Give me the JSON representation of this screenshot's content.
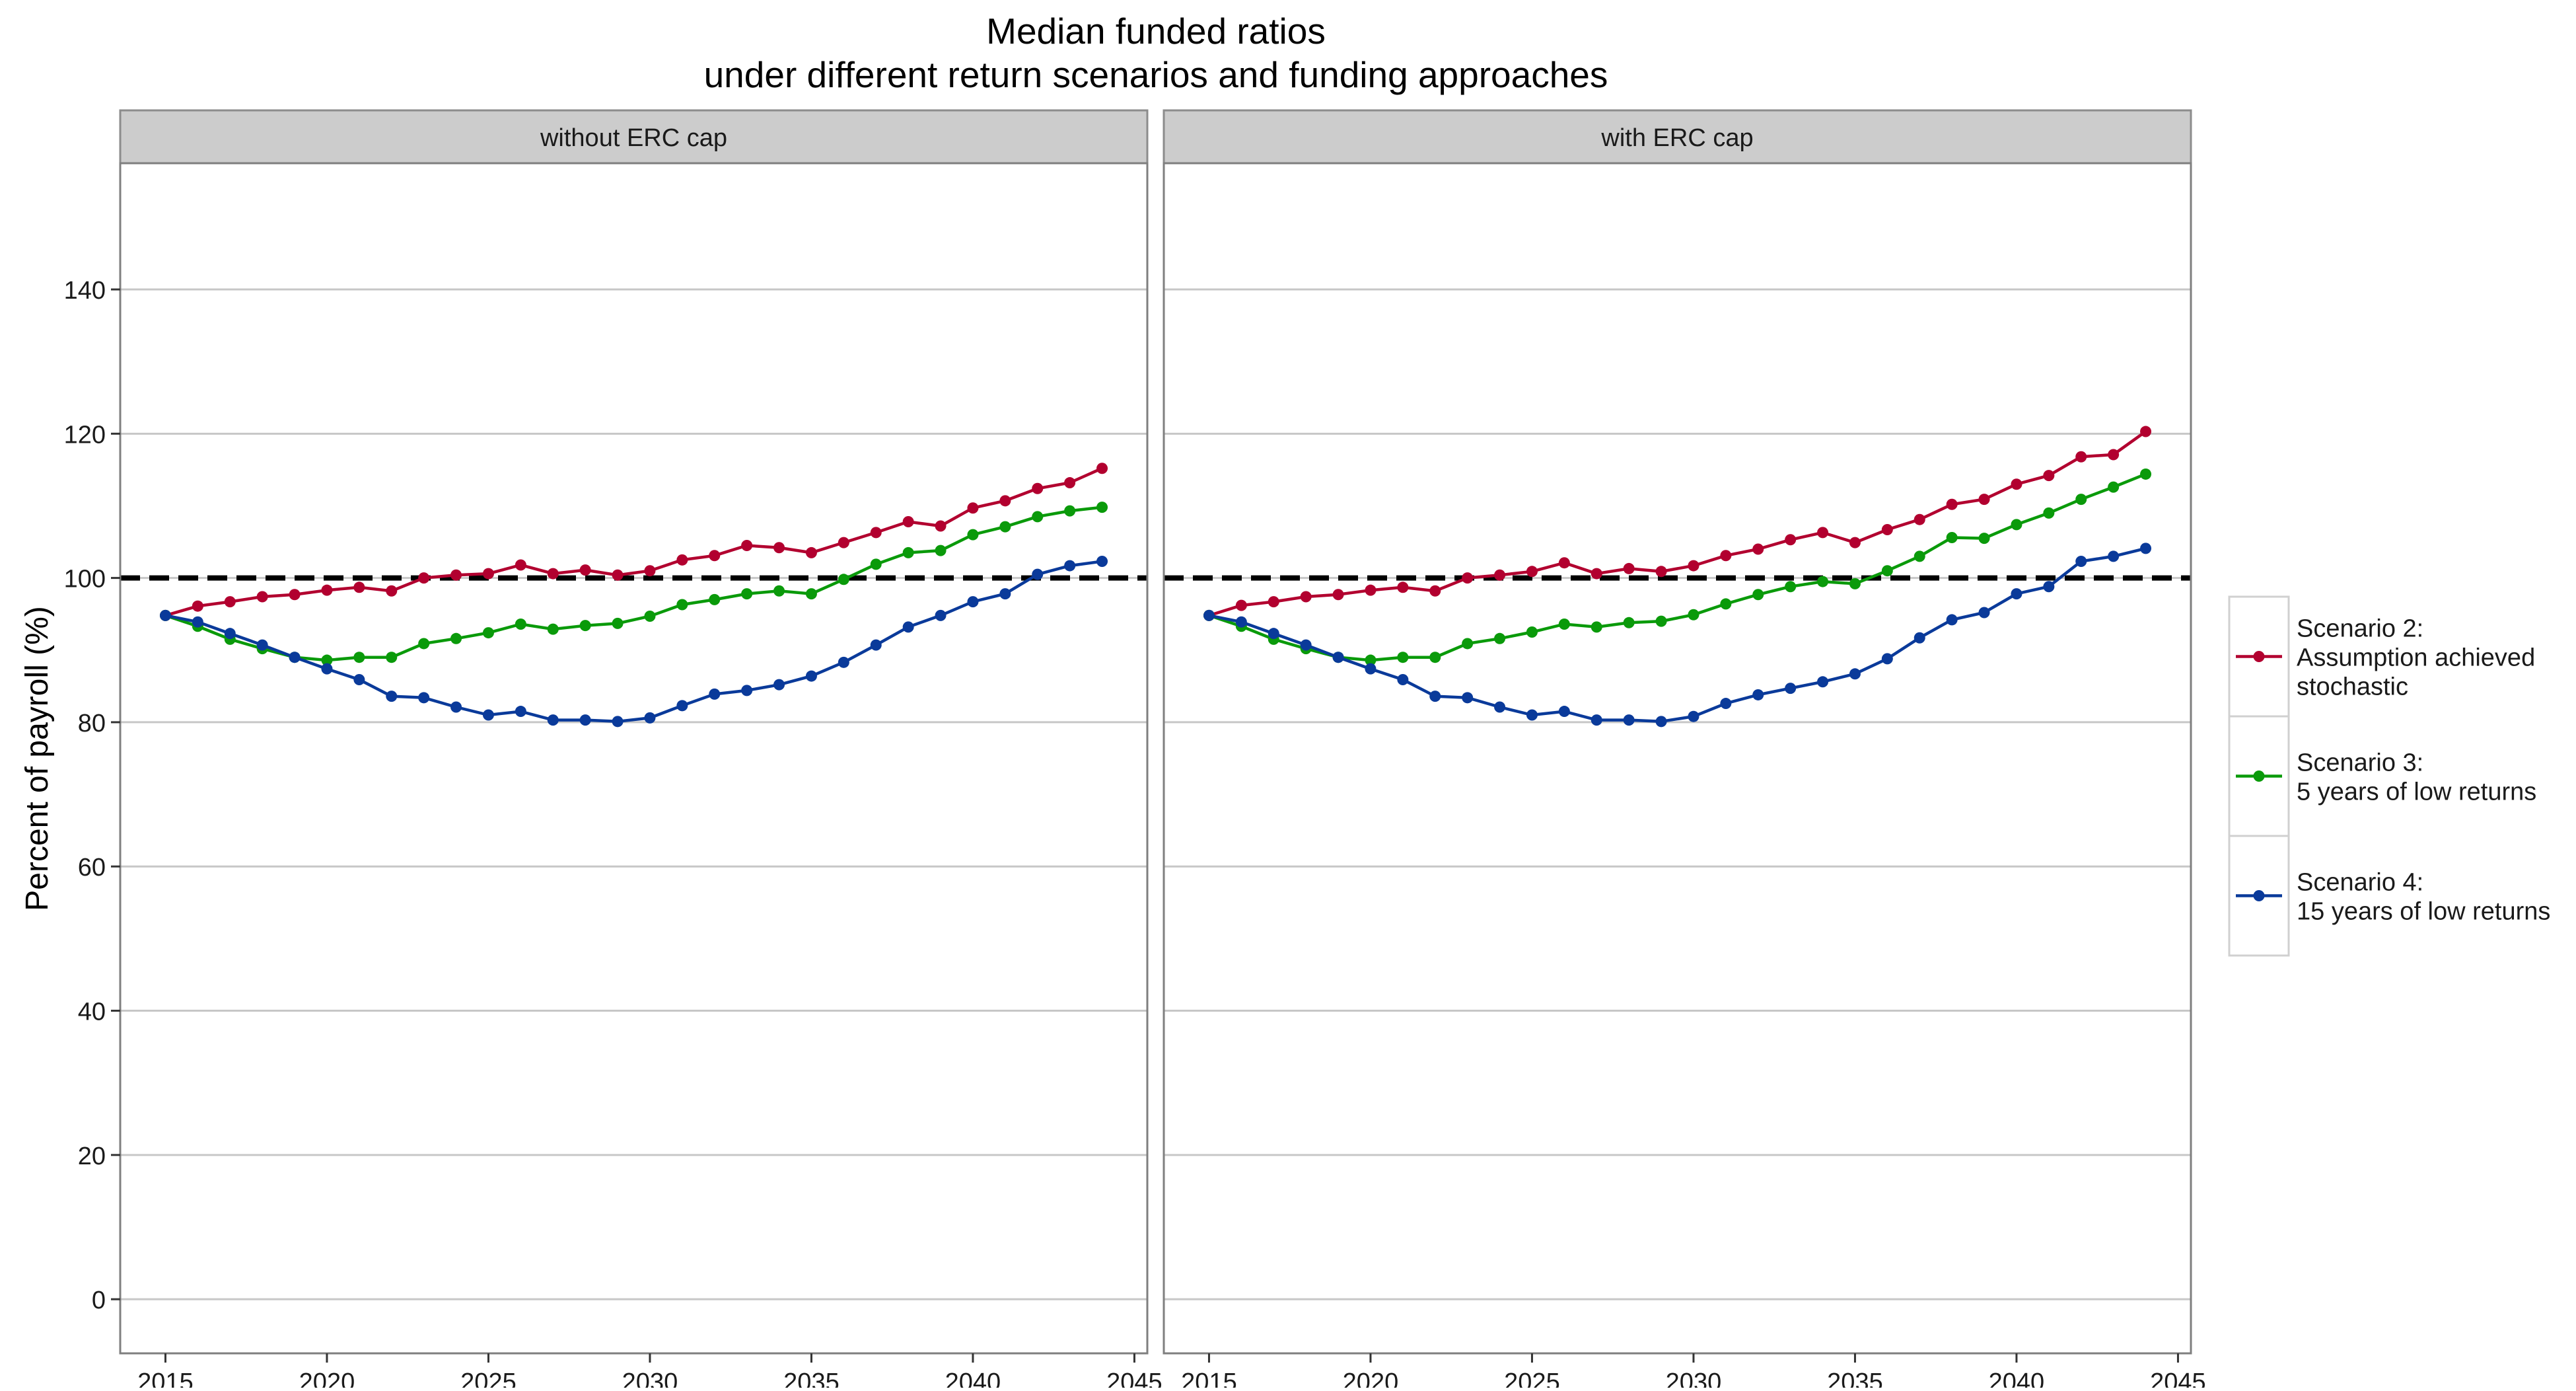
{
  "chart_data": {
    "type": "line",
    "title": [
      "Median funded ratios",
      "under different return scenarios and funding approaches"
    ],
    "ylabel": "Percent of payroll (%)",
    "xlabel": "",
    "xlim": [
      2013.6,
      2045.4
    ],
    "ylim": [
      -7.5,
      157.5
    ],
    "x_ticks": [
      2015,
      2020,
      2025,
      2030,
      2035,
      2040,
      2045
    ],
    "y_ticks": [
      0,
      20,
      40,
      60,
      80,
      100,
      120,
      140
    ],
    "grid": true,
    "reference_line": {
      "y": 100,
      "style": "dashed",
      "color": "#000000"
    },
    "legend": {
      "position": "right"
    },
    "x": [
      2015,
      2016,
      2017,
      2018,
      2019,
      2020,
      2021,
      2022,
      2023,
      2024,
      2025,
      2026,
      2027,
      2028,
      2029,
      2030,
      2031,
      2032,
      2033,
      2034,
      2035,
      2036,
      2037,
      2038,
      2039,
      2040,
      2041,
      2042,
      2043,
      2044
    ],
    "panels": [
      {
        "label": "without ERC cap",
        "series": [
          {
            "name": "Scenario 2:\nAssumption achieved\nstochastic",
            "color": "#b2002f",
            "values": [
              94.8,
              96.1,
              96.7,
              97.4,
              97.7,
              98.3,
              98.7,
              98.2,
              100.0,
              100.4,
              100.6,
              101.8,
              100.6,
              101.1,
              100.4,
              101.0,
              102.5,
              103.1,
              104.5,
              104.2,
              103.5,
              104.9,
              106.3,
              107.8,
              107.2,
              109.7,
              110.7,
              112.4,
              113.2,
              115.2
            ]
          },
          {
            "name": "Scenario 3:\n5 years of low returns",
            "color": "#0a9a0a",
            "values": [
              94.8,
              93.3,
              91.5,
              90.2,
              89.0,
              88.6,
              89.0,
              89.0,
              90.9,
              91.6,
              92.4,
              93.6,
              92.9,
              93.4,
              93.7,
              94.7,
              96.3,
              97.0,
              97.8,
              98.2,
              97.8,
              99.8,
              101.9,
              103.5,
              103.8,
              106.0,
              107.1,
              108.5,
              109.3,
              109.8
            ]
          },
          {
            "name": "Scenario 4:\n15 years of low returns",
            "color": "#0a3a9a",
            "values": [
              94.8,
              93.9,
              92.3,
              90.7,
              89.0,
              87.4,
              85.9,
              83.6,
              83.4,
              82.1,
              81.0,
              81.5,
              80.3,
              80.3,
              80.1,
              80.6,
              82.3,
              83.9,
              84.4,
              85.2,
              86.4,
              88.3,
              90.7,
              93.2,
              94.8,
              96.7,
              97.8,
              100.5,
              101.7,
              102.3
            ]
          }
        ]
      },
      {
        "label": "with ERC cap",
        "series": [
          {
            "name": "Scenario 2:\nAssumption achieved\nstochastic",
            "color": "#b2002f",
            "values": [
              94.8,
              96.2,
              96.7,
              97.4,
              97.7,
              98.3,
              98.7,
              98.2,
              100.0,
              100.4,
              100.9,
              102.1,
              100.6,
              101.3,
              100.9,
              101.7,
              103.1,
              104.0,
              105.3,
              106.3,
              104.9,
              106.7,
              108.1,
              110.2,
              110.9,
              113.0,
              114.2,
              116.8,
              117.1,
              120.3
            ]
          },
          {
            "name": "Scenario 3:\n5 years of low returns",
            "color": "#0a9a0a",
            "values": [
              94.8,
              93.3,
              91.5,
              90.2,
              89.0,
              88.6,
              89.0,
              89.0,
              90.9,
              91.6,
              92.5,
              93.6,
              93.2,
              93.8,
              94.0,
              94.9,
              96.4,
              97.7,
              98.8,
              99.5,
              99.2,
              101.0,
              103.0,
              105.6,
              105.5,
              107.4,
              109.0,
              110.9,
              112.6,
              114.4
            ]
          },
          {
            "name": "Scenario 4:\n15 years of low returns",
            "color": "#0a3a9a",
            "values": [
              94.8,
              93.9,
              92.3,
              90.7,
              89.0,
              87.4,
              85.9,
              83.6,
              83.4,
              82.1,
              81.0,
              81.5,
              80.3,
              80.3,
              80.1,
              80.8,
              82.6,
              83.8,
              84.7,
              85.6,
              86.7,
              88.8,
              91.7,
              94.2,
              95.2,
              97.8,
              98.8,
              102.3,
              103.0,
              104.1
            ]
          }
        ]
      }
    ]
  }
}
